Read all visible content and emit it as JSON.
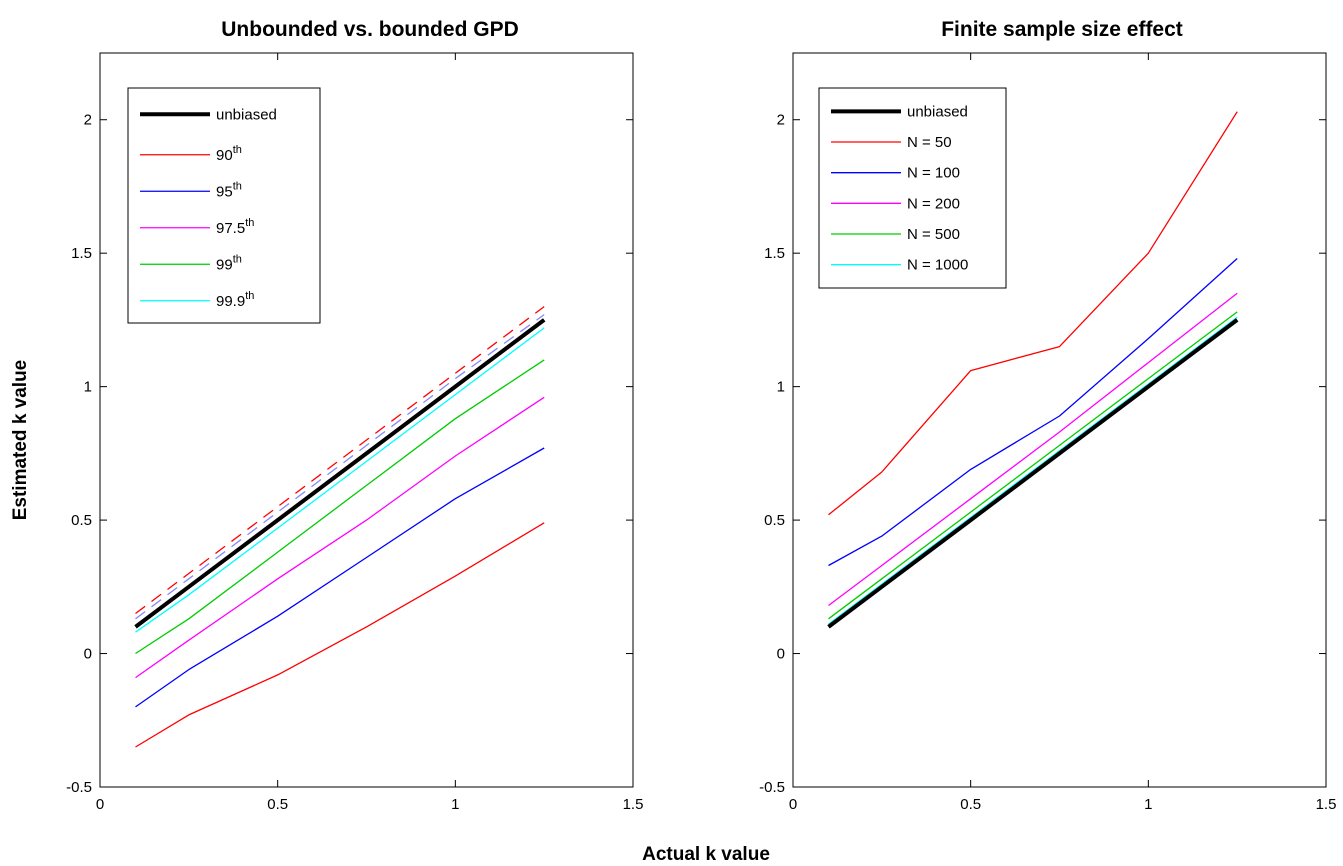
{
  "xlabel": "Actual k value",
  "ylabel": "Estimated k value",
  "chart_data": [
    {
      "type": "line",
      "title": "Unbounded vs. bounded GPD",
      "xlabel": "Actual k value",
      "ylabel": "Estimated k value",
      "xlim": [
        0,
        1.5
      ],
      "ylim": [
        -0.5,
        2.25
      ],
      "xticks": [
        "0",
        "0.5",
        "1",
        "1.5"
      ],
      "yticks": [
        "-0.5",
        "0",
        "0.5",
        "1",
        "1.5",
        "2"
      ],
      "legend_position": "top-left",
      "series": [
        {
          "name": "unbiased",
          "color": "#000000",
          "width": 4,
          "x": [
            0.1,
            0.25,
            0.5,
            0.75,
            1.0,
            1.25
          ],
          "y": [
            0.1,
            0.25,
            0.5,
            0.75,
            1.0,
            1.25
          ]
        },
        {
          "name": "90",
          "sup": "th",
          "color": "#ff0000",
          "width": 1.3,
          "x": [
            0.1,
            0.25,
            0.5,
            0.75,
            1.0,
            1.25
          ],
          "y": [
            -0.35,
            -0.23,
            -0.08,
            0.1,
            0.29,
            0.49
          ]
        },
        {
          "name": "95",
          "sup": "th",
          "color": "#0000ff",
          "width": 1.3,
          "x": [
            0.1,
            0.25,
            0.5,
            0.75,
            1.0,
            1.25
          ],
          "y": [
            -0.2,
            -0.06,
            0.14,
            0.36,
            0.58,
            0.77
          ]
        },
        {
          "name": "97.5",
          "sup": "th",
          "color": "#ff00ff",
          "width": 1.3,
          "x": [
            0.1,
            0.25,
            0.5,
            0.75,
            1.0,
            1.25
          ],
          "y": [
            -0.09,
            0.05,
            0.28,
            0.5,
            0.74,
            0.96
          ]
        },
        {
          "name": "99",
          "sup": "th",
          "color": "#00cc00",
          "width": 1.3,
          "x": [
            0.1,
            0.25,
            0.5,
            0.75,
            1.0,
            1.25
          ],
          "y": [
            0.0,
            0.13,
            0.38,
            0.63,
            0.88,
            1.1
          ]
        },
        {
          "name": "99.9",
          "sup": "th",
          "color": "#00ffff",
          "width": 1.3,
          "x": [
            0.1,
            0.25,
            0.5,
            0.75,
            1.0,
            1.25
          ],
          "y": [
            0.08,
            0.22,
            0.47,
            0.72,
            0.97,
            1.22
          ]
        },
        {
          "name": "",
          "color": "#ff0000",
          "width": 1.3,
          "dash": "12,8",
          "x": [
            0.1,
            0.25,
            0.5,
            0.75,
            1.0,
            1.25
          ],
          "y": [
            0.15,
            0.3,
            0.55,
            0.8,
            1.05,
            1.3
          ]
        },
        {
          "name": "",
          "color": "#8888ff",
          "width": 1.3,
          "dash": "12,8",
          "x": [
            0.1,
            0.25,
            0.5,
            0.75,
            1.0,
            1.25
          ],
          "y": [
            0.13,
            0.28,
            0.53,
            0.78,
            1.03,
            1.27
          ]
        }
      ]
    },
    {
      "type": "line",
      "title": "Finite sample size effect",
      "xlabel": "Actual k value",
      "ylabel": "Estimated k value",
      "xlim": [
        0,
        1.5
      ],
      "ylim": [
        -0.5,
        2.25
      ],
      "xticks": [
        "0",
        "0.5",
        "1",
        "1.5"
      ],
      "yticks": [
        "-0.5",
        "0",
        "0.5",
        "1",
        "1.5",
        "2"
      ],
      "legend_position": "top-left",
      "series": [
        {
          "name": "unbiased",
          "color": "#000000",
          "width": 4,
          "x": [
            0.1,
            0.25,
            0.5,
            0.75,
            1.0,
            1.25
          ],
          "y": [
            0.1,
            0.25,
            0.5,
            0.75,
            1.0,
            1.25
          ]
        },
        {
          "name": "N = 50",
          "color": "#ff0000",
          "width": 1.3,
          "x": [
            0.1,
            0.25,
            0.5,
            0.75,
            1.0,
            1.25
          ],
          "y": [
            0.52,
            0.68,
            1.06,
            1.15,
            1.5,
            2.03
          ]
        },
        {
          "name": "N = 100",
          "color": "#0000ff",
          "width": 1.3,
          "x": [
            0.1,
            0.25,
            0.5,
            0.75,
            1.0,
            1.25
          ],
          "y": [
            0.33,
            0.44,
            0.69,
            0.89,
            1.18,
            1.48
          ]
        },
        {
          "name": "N = 200",
          "color": "#ff00ff",
          "width": 1.3,
          "x": [
            0.1,
            0.25,
            0.5,
            0.75,
            1.0,
            1.25
          ],
          "y": [
            0.18,
            0.33,
            0.58,
            0.83,
            1.09,
            1.35
          ]
        },
        {
          "name": "N = 500",
          "color": "#00cc00",
          "width": 1.3,
          "x": [
            0.1,
            0.25,
            0.5,
            0.75,
            1.0,
            1.25
          ],
          "y": [
            0.13,
            0.28,
            0.53,
            0.78,
            1.03,
            1.28
          ]
        },
        {
          "name": "N = 1000",
          "color": "#00ffff",
          "width": 1.3,
          "x": [
            0.1,
            0.25,
            0.5,
            0.75,
            1.0,
            1.25
          ],
          "y": [
            0.11,
            0.26,
            0.51,
            0.76,
            1.01,
            1.26
          ]
        }
      ]
    }
  ]
}
